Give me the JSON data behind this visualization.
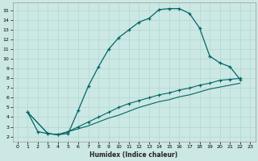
{
  "xlabel": "Humidex (Indice chaleur)",
  "bg_color": "#cce8e4",
  "grid_color": "#b0d8d0",
  "line_color": "#006666",
  "xlim": [
    -0.5,
    23.5
  ],
  "ylim": [
    1.5,
    15.8
  ],
  "yticks": [
    2,
    3,
    4,
    5,
    6,
    7,
    8,
    9,
    10,
    11,
    12,
    13,
    14,
    15
  ],
  "xticks": [
    0,
    1,
    2,
    3,
    4,
    5,
    6,
    7,
    8,
    9,
    10,
    11,
    12,
    13,
    14,
    15,
    16,
    17,
    18,
    19,
    20,
    21,
    22,
    23
  ],
  "curve1_x": [
    1,
    2,
    3,
    4,
    5,
    6,
    7,
    8,
    9,
    10,
    11,
    12,
    13,
    14,
    15,
    16,
    17,
    18,
    19,
    20,
    21,
    22
  ],
  "curve1_y": [
    4.5,
    2.5,
    2.3,
    2.2,
    2.3,
    4.7,
    7.2,
    9.2,
    11.0,
    12.2,
    13.0,
    13.8,
    14.2,
    15.1,
    15.2,
    15.2,
    14.7,
    13.2,
    10.3,
    9.6,
    9.2,
    7.9
  ],
  "curve2_x": [
    1,
    3,
    4,
    5,
    6,
    7,
    8,
    9,
    10,
    11,
    12,
    13,
    14,
    15,
    16,
    17,
    18,
    19,
    20,
    21,
    22
  ],
  "curve2_y": [
    4.5,
    2.3,
    2.2,
    2.5,
    3.0,
    3.5,
    4.0,
    4.5,
    5.0,
    5.4,
    5.7,
    6.0,
    6.3,
    6.5,
    6.8,
    7.0,
    7.3,
    7.5,
    7.8,
    7.9,
    8.0
  ],
  "curve3_x": [
    1,
    3,
    4,
    5,
    6,
    7,
    8,
    9,
    10,
    11,
    12,
    13,
    14,
    15,
    16,
    17,
    18,
    19,
    20,
    21,
    22
  ],
  "curve3_y": [
    4.5,
    2.3,
    2.2,
    2.5,
    2.8,
    3.1,
    3.5,
    3.9,
    4.2,
    4.6,
    5.0,
    5.3,
    5.6,
    5.8,
    6.1,
    6.3,
    6.6,
    6.9,
    7.1,
    7.3,
    7.5
  ]
}
